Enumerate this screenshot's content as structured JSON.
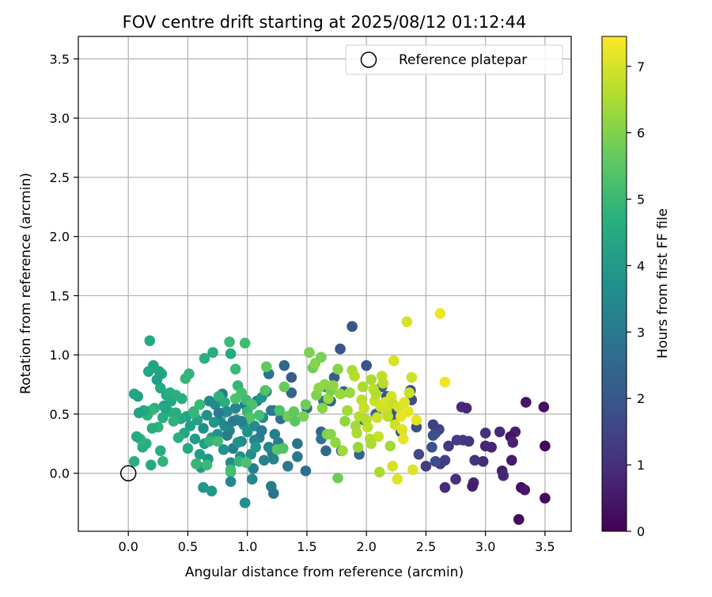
{
  "chart_data": {
    "type": "scatter",
    "title": "FOV centre drift starting at 2025/08/12 01:12:44",
    "xlabel": "Angular distance from reference (arcmin)",
    "ylabel": "Rotation from reference (arcmin)",
    "xlim": [
      -0.42,
      3.72
    ],
    "ylim": [
      -0.49,
      3.69
    ],
    "xticks": [
      0.0,
      0.5,
      1.0,
      1.5,
      2.0,
      2.5,
      3.0,
      3.5
    ],
    "yticks": [
      0.0,
      0.5,
      1.0,
      1.5,
      2.0,
      2.5,
      3.0,
      3.5
    ],
    "xtick_labels": [
      "0.0",
      "0.5",
      "1.0",
      "1.5",
      "2.0",
      "2.5",
      "3.0",
      "3.5"
    ],
    "ytick_labels": [
      "0.0",
      "0.5",
      "1.0",
      "1.5",
      "2.0",
      "2.5",
      "3.0",
      "3.5"
    ],
    "grid": true,
    "legend": {
      "placement": "top-right",
      "entries": [
        "Reference platepar"
      ]
    },
    "reference_point": {
      "label": "Reference platepar",
      "x": 0.0,
      "y": 0.0
    },
    "colorbar": {
      "label": "Hours from first FF file",
      "range": [
        0,
        7.45
      ],
      "ticks": [
        0,
        1,
        2,
        3,
        4,
        5,
        6,
        7
      ],
      "tick_labels": [
        "0",
        "1",
        "2",
        "3",
        "4",
        "5",
        "6",
        "7"
      ],
      "colormap": "viridis"
    },
    "points": [
      [
        3.5,
        0.23,
        0.1
      ],
      [
        3.5,
        -0.21,
        0.2
      ],
      [
        3.49,
        0.56,
        0.3
      ],
      [
        3.34,
        0.6,
        0.4
      ],
      [
        3.3,
        -0.12,
        0.3
      ],
      [
        3.28,
        -0.39,
        0.2
      ],
      [
        3.33,
        -0.14,
        0.5
      ],
      [
        3.25,
        0.35,
        0.6
      ],
      [
        3.21,
        0.31,
        0.4
      ],
      [
        3.23,
        0.26,
        0.7
      ],
      [
        3.22,
        0.11,
        0.5
      ],
      [
        3.14,
        0.02,
        0.6
      ],
      [
        3.15,
        -0.02,
        0.8
      ],
      [
        3.12,
        0.35,
        0.9
      ],
      [
        3.05,
        0.22,
        0.7
      ],
      [
        3.0,
        0.23,
        0.8
      ],
      [
        3.0,
        0.34,
        1.0
      ],
      [
        2.98,
        0.1,
        0.9
      ],
      [
        2.91,
        0.11,
        1.1
      ],
      [
        2.9,
        -0.08,
        0.7
      ],
      [
        2.89,
        -0.11,
        0.6
      ],
      [
        2.86,
        0.27,
        1.1
      ],
      [
        2.81,
        0.28,
        1.2
      ],
      [
        2.8,
        0.56,
        0.9
      ],
      [
        2.84,
        0.55,
        0.8
      ],
      [
        2.76,
        0.28,
        1.3
      ],
      [
        2.75,
        -0.05,
        1.0
      ],
      [
        2.69,
        0.23,
        1.2
      ],
      [
        2.66,
        -0.12,
        0.9
      ],
      [
        2.66,
        0.11,
        1.4
      ],
      [
        2.62,
        0.08,
        1.3
      ],
      [
        2.61,
        0.37,
        1.5
      ],
      [
        2.58,
        0.34,
        1.6
      ],
      [
        2.58,
        0.1,
        1.7
      ],
      [
        2.56,
        0.32,
        1.8
      ],
      [
        2.56,
        0.41,
        1.4
      ],
      [
        2.55,
        0.22,
        1.9
      ],
      [
        2.5,
        0.06,
        1.3
      ],
      [
        2.44,
        0.16,
        1.6
      ],
      [
        2.42,
        0.39,
        1.8
      ],
      [
        2.37,
        0.7,
        1.6
      ],
      [
        2.38,
        0.62,
        1.7
      ],
      [
        2.29,
        0.35,
        2.0
      ],
      [
        2.24,
        0.46,
        2.1
      ],
      [
        2.22,
        0.54,
        1.9
      ],
      [
        2.18,
        0.58,
        2.2
      ],
      [
        2.17,
        0.65,
        2.0
      ],
      [
        2.13,
        0.73,
        2.1
      ],
      [
        2.08,
        0.5,
        2.3
      ],
      [
        2.0,
        0.91,
        1.9
      ],
      [
        1.98,
        0.45,
        2.2
      ],
      [
        1.94,
        0.16,
        2.4
      ],
      [
        1.88,
        1.24,
        2.0
      ],
      [
        1.81,
        0.69,
        2.3
      ],
      [
        1.79,
        0.19,
        2.5
      ],
      [
        1.78,
        1.05,
        1.9
      ],
      [
        1.73,
        0.81,
        2.2
      ],
      [
        1.7,
        0.61,
        2.4
      ],
      [
        1.66,
        0.73,
        2.5
      ],
      [
        1.64,
        0.61,
        2.7
      ],
      [
        1.62,
        0.35,
        2.4
      ],
      [
        1.66,
        0.19,
        2.6
      ],
      [
        1.62,
        0.29,
        2.8
      ],
      [
        1.5,
        0.55,
        2.6
      ],
      [
        1.49,
        0.02,
        2.7
      ],
      [
        1.42,
        0.25,
        2.9
      ],
      [
        1.42,
        0.14,
        3.0
      ],
      [
        1.37,
        0.68,
        2.4
      ],
      [
        1.37,
        0.81,
        2.2
      ],
      [
        1.34,
        0.48,
        2.9
      ],
      [
        1.31,
        0.91,
        2.5
      ],
      [
        1.34,
        0.06,
        3.0
      ],
      [
        1.28,
        0.46,
        2.8
      ],
      [
        1.26,
        0.26,
        3.1
      ],
      [
        1.22,
        0.53,
        2.7
      ],
      [
        1.23,
        0.33,
        3.2
      ],
      [
        1.22,
        0.12,
        3.3
      ],
      [
        1.2,
        0.53,
        3.0
      ],
      [
        1.21,
        0.17,
        3.1
      ],
      [
        1.2,
        -0.11,
        3.2
      ],
      [
        1.22,
        -0.17,
        2.9
      ],
      [
        1.18,
        0.84,
        2.8
      ],
      [
        1.16,
        0.69,
        2.9
      ],
      [
        1.18,
        0.22,
        3.4
      ],
      [
        1.14,
        0.11,
        3.3
      ],
      [
        1.13,
        0.47,
        3.5
      ],
      [
        1.1,
        0.3,
        3.1
      ],
      [
        1.08,
        0.61,
        3.3
      ],
      [
        1.06,
        0.4,
        3.6
      ],
      [
        1.06,
        0.28,
        3.4
      ],
      [
        1.05,
        0.04,
        3.2
      ],
      [
        1.04,
        -0.05,
        3.5
      ],
      [
        1.03,
        0.16,
        3.6
      ],
      [
        1.0,
        0.35,
        3.7
      ],
      [
        0.98,
        0.58,
        3.1
      ],
      [
        0.97,
        0.41,
        3.8
      ],
      [
        0.95,
        0.27,
        3.5
      ],
      [
        0.94,
        0.14,
        3.7
      ],
      [
        0.91,
        0.45,
        3.9
      ],
      [
        0.9,
        0.55,
        3.4
      ],
      [
        0.88,
        0.21,
        3.2
      ],
      [
        0.88,
        0.44,
        3.0
      ],
      [
        0.85,
        0.36,
        3.3
      ],
      [
        0.86,
        0.09,
        3.6
      ],
      [
        0.83,
        0.32,
        3.1
      ],
      [
        0.81,
        0.4,
        3.4
      ],
      [
        0.8,
        0.2,
        3.8
      ],
      [
        0.79,
        0.67,
        3.2
      ],
      [
        0.77,
        0.45,
        3.5
      ],
      [
        0.75,
        0.33,
        3.7
      ],
      [
        0.73,
        0.58,
        3.6
      ],
      [
        0.72,
        0.43,
        3.9
      ],
      [
        0.7,
        0.3,
        4.0
      ],
      [
        0.68,
        0.61,
        3.5
      ],
      [
        0.67,
        0.12,
        3.9
      ],
      [
        0.66,
        0.49,
        3.8
      ],
      [
        0.64,
        0.25,
        4.1
      ],
      [
        0.63,
        0.38,
        3.7
      ],
      [
        0.61,
        0.05,
        4.0
      ],
      [
        0.6,
        0.16,
        4.2
      ],
      [
        0.58,
        0.45,
        4.3
      ],
      [
        0.56,
        0.29,
        4.1
      ],
      [
        0.55,
        0.52,
        4.4
      ],
      [
        0.52,
        0.4,
        4.2
      ],
      [
        0.5,
        0.21,
        4.5
      ],
      [
        0.49,
        0.48,
        4.3
      ],
      [
        0.47,
        0.34,
        4.4
      ],
      [
        0.45,
        0.63,
        4.6
      ],
      [
        0.44,
        0.46,
        4.5
      ],
      [
        0.42,
        0.3,
        4.7
      ],
      [
        0.4,
        0.51,
        4.6
      ],
      [
        0.38,
        0.44,
        4.8
      ],
      [
        0.36,
        0.61,
        4.4
      ],
      [
        0.34,
        0.52,
        4.7
      ],
      [
        0.32,
        0.66,
        4.5
      ],
      [
        0.3,
        0.57,
        4.3
      ],
      [
        0.29,
        0.47,
        4.6
      ],
      [
        0.28,
        0.84,
        4.4
      ],
      [
        0.27,
        0.72,
        4.5
      ],
      [
        0.26,
        0.86,
        4.3
      ],
      [
        0.25,
        0.39,
        4.8
      ],
      [
        0.24,
        0.79,
        4.2
      ],
      [
        0.22,
        0.55,
        4.7
      ],
      [
        0.21,
        0.91,
        4.3
      ],
      [
        0.2,
        0.38,
        4.6
      ],
      [
        0.19,
        0.53,
        4.9
      ],
      [
        0.18,
        1.12,
        4.5
      ],
      [
        0.17,
        0.86,
        4.4
      ],
      [
        0.16,
        0.49,
        4.8
      ],
      [
        0.15,
        0.25,
        4.7
      ],
      [
        0.13,
        0.53,
        4.5
      ],
      [
        0.12,
        0.22,
        4.6
      ],
      [
        0.1,
        0.29,
        4.8
      ],
      [
        0.09,
        0.51,
        4.3
      ],
      [
        0.08,
        0.65,
        4.2
      ],
      [
        0.07,
        0.31,
        4.5
      ],
      [
        0.05,
        0.1,
        4.7
      ],
      [
        0.05,
        0.67,
        4.4
      ],
      [
        0.29,
        0.1,
        4.8
      ],
      [
        0.27,
        0.19,
        4.6
      ],
      [
        0.19,
        0.07,
        4.5
      ],
      [
        0.31,
        0.55,
        4.4
      ],
      [
        0.35,
        0.68,
        4.6
      ],
      [
        0.4,
        0.66,
        4.7
      ],
      [
        0.51,
        0.84,
        4.8
      ],
      [
        0.48,
        0.8,
        4.9
      ],
      [
        0.64,
        0.97,
        4.7
      ],
      [
        0.71,
        1.02,
        4.6
      ],
      [
        0.86,
        1.01,
        4.5
      ],
      [
        0.85,
        1.11,
        5.0
      ],
      [
        0.98,
        1.1,
        5.1
      ],
      [
        0.9,
        0.88,
        5.0
      ],
      [
        0.92,
        0.74,
        4.9
      ],
      [
        0.95,
        0.68,
        5.2
      ],
      [
        0.99,
        0.62,
        5.1
      ],
      [
        1.04,
        0.58,
        5.3
      ],
      [
        1.0,
        0.52,
        5.0
      ],
      [
        1.02,
        0.47,
        5.4
      ],
      [
        0.93,
        0.1,
        4.9
      ],
      [
        0.86,
        0.03,
        5.1
      ],
      [
        0.86,
        0.01,
        5.2
      ],
      [
        0.99,
        0.09,
        5.3
      ],
      [
        0.7,
        -0.15,
        4.0
      ],
      [
        0.63,
        -0.12,
        3.9
      ],
      [
        0.68,
        0.27,
        4.8
      ],
      [
        0.57,
        0.08,
        4.9
      ],
      [
        0.66,
        0.07,
        5.0
      ],
      [
        0.76,
        0.65,
        4.8
      ],
      [
        0.81,
        0.6,
        4.7
      ],
      [
        0.98,
        -0.25,
        3.6
      ],
      [
        0.86,
        -0.07,
        3.4
      ],
      [
        1.12,
        0.64,
        3.9
      ],
      [
        1.15,
        0.7,
        5.4
      ],
      [
        1.16,
        0.9,
        5.6
      ],
      [
        1.25,
        0.2,
        5.5
      ],
      [
        1.31,
        0.73,
        5.7
      ],
      [
        1.34,
        0.48,
        5.8
      ],
      [
        1.39,
        0.52,
        5.6
      ],
      [
        1.47,
        0.48,
        5.9
      ],
      [
        1.52,
        1.02,
        6.0
      ],
      [
        1.55,
        0.89,
        5.8
      ],
      [
        1.57,
        0.93,
        6.1
      ],
      [
        1.58,
        0.66,
        6.0
      ],
      [
        1.6,
        0.72,
        6.2
      ],
      [
        1.62,
        0.98,
        5.9
      ],
      [
        1.63,
        0.55,
        6.1
      ],
      [
        1.65,
        0.75,
        6.2
      ],
      [
        1.67,
        0.33,
        6.0
      ],
      [
        1.68,
        0.63,
        6.3
      ],
      [
        1.7,
        0.7,
        5.9
      ],
      [
        1.72,
        0.74,
        6.2
      ],
      [
        1.76,
        0.88,
        6.1
      ],
      [
        1.78,
        0.67,
        6.3
      ],
      [
        1.8,
        0.19,
        6.4
      ],
      [
        1.76,
        -0.04,
        5.8
      ],
      [
        1.82,
        0.44,
        6.2
      ],
      [
        1.84,
        0.53,
        6.4
      ],
      [
        1.86,
        0.68,
        6.3
      ],
      [
        1.88,
        0.87,
        6.5
      ],
      [
        1.9,
        0.82,
        6.6
      ],
      [
        1.91,
        0.4,
        6.4
      ],
      [
        1.92,
        0.34,
        6.5
      ],
      [
        1.93,
        0.22,
        6.3
      ],
      [
        1.94,
        0.48,
        6.6
      ],
      [
        1.96,
        0.62,
        6.7
      ],
      [
        1.97,
        0.73,
        6.5
      ],
      [
        1.98,
        0.55,
        6.8
      ],
      [
        2.0,
        0.45,
        6.6
      ],
      [
        2.01,
        0.39,
        6.7
      ],
      [
        2.03,
        0.29,
        6.6
      ],
      [
        2.04,
        0.79,
        6.5
      ],
      [
        2.06,
        0.71,
        6.7
      ],
      [
        2.07,
        0.61,
        6.8
      ],
      [
        2.08,
        0.67,
        6.6
      ],
      [
        2.09,
        0.47,
        6.9
      ],
      [
        2.1,
        0.31,
        6.8
      ],
      [
        2.11,
        0.01,
        6.5
      ],
      [
        2.12,
        0.56,
        6.9
      ],
      [
        2.13,
        0.82,
        6.7
      ],
      [
        2.14,
        0.76,
        6.6
      ],
      [
        2.16,
        0.6,
        7.0
      ],
      [
        2.17,
        0.53,
        6.9
      ],
      [
        2.18,
        0.48,
        6.7
      ],
      [
        2.2,
        0.23,
        6.4
      ],
      [
        2.21,
        0.65,
        7.0
      ],
      [
        2.22,
        0.59,
        6.8
      ],
      [
        2.23,
        0.95,
        7.0
      ],
      [
        2.24,
        0.41,
        6.9
      ],
      [
        2.26,
        -0.05,
        7.1
      ],
      [
        2.27,
        0.56,
        7.0
      ],
      [
        2.29,
        0.48,
        7.2
      ],
      [
        2.3,
        0.37,
        7.1
      ],
      [
        2.31,
        0.29,
        7.2
      ],
      [
        2.32,
        0.6,
        7.1
      ],
      [
        2.34,
        1.28,
        7.0
      ],
      [
        2.35,
        0.52,
        7.2
      ],
      [
        2.36,
        0.68,
        6.8
      ],
      [
        2.38,
        0.81,
        6.9
      ],
      [
        2.39,
        0.03,
        7.1
      ],
      [
        2.42,
        0.45,
        7.2
      ],
      [
        2.62,
        1.35,
        7.3
      ],
      [
        2.66,
        0.77,
        7.3
      ],
      [
        2.22,
        0.06,
        7.0
      ],
      [
        2.04,
        0.25,
        6.5
      ],
      [
        1.74,
        0.26,
        6.2
      ],
      [
        1.7,
        0.33,
        6.1
      ],
      [
        1.49,
        0.58,
        5.8
      ],
      [
        1.4,
        0.44,
        5.5
      ],
      [
        1.3,
        0.21,
        5.4
      ],
      [
        1.27,
        0.53,
        5.3
      ],
      [
        1.1,
        0.49,
        5.2
      ],
      [
        0.9,
        0.63,
        5.3
      ],
      [
        0.8,
        0.51,
        5.0
      ],
      [
        0.75,
        0.27,
        5.1
      ],
      [
        0.6,
        0.58,
        5.0
      ],
      [
        0.55,
        0.51,
        4.9
      ],
      [
        0.92,
        0.26,
        3.8
      ],
      [
        1.07,
        0.22,
        3.9
      ],
      [
        0.83,
        0.52,
        3.6
      ],
      [
        0.95,
        0.44,
        3.2
      ],
      [
        0.76,
        0.51,
        3.0
      ],
      [
        1.12,
        0.36,
        3.0
      ]
    ]
  }
}
